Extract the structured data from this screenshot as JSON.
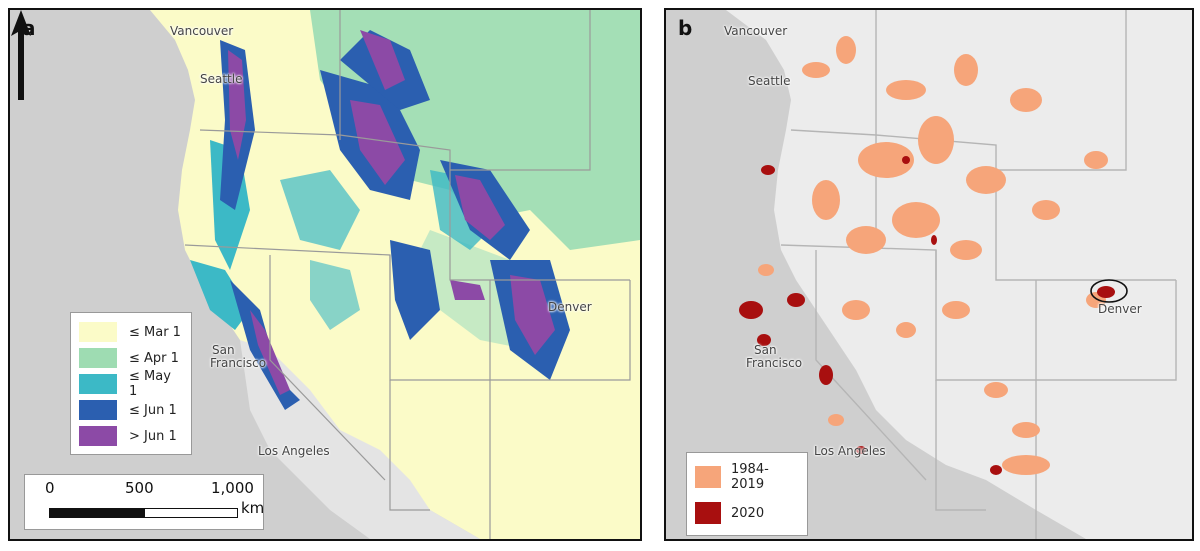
{
  "panel_a": {
    "letter": "a",
    "cities": {
      "vancouver": "Vancouver",
      "seattle": "Seattle",
      "denver": "Denver",
      "san_francisco_line1": "San",
      "san_francisco_line2": "Francisco",
      "los_angeles": "Los Angeles"
    },
    "legend": [
      {
        "label": "≤ Mar 1",
        "color": "#fbfbc8"
      },
      {
        "label": "≤ Apr 1",
        "color": "#9edcb2"
      },
      {
        "label": "≤ May 1",
        "color": "#3cb9c6"
      },
      {
        "label": "≤ Jun 1",
        "color": "#2b5fb0"
      },
      {
        "label": "> Jun 1",
        "color": "#8c4aa6"
      }
    ],
    "scalebar": {
      "ticks": [
        "0",
        "500",
        "1,000"
      ],
      "unit": "km"
    }
  },
  "panel_b": {
    "letter": "b",
    "cities": {
      "vancouver": "Vancouver",
      "seattle": "Seattle",
      "denver": "Denver",
      "san_francisco_line1": "San",
      "san_francisco_line2": "Francisco",
      "los_angeles": "Los Angeles"
    },
    "legend": [
      {
        "label": "1984-2019",
        "color": "#f6a57a"
      },
      {
        "label": "2020",
        "color": "#a80f0f"
      }
    ]
  },
  "colors": {
    "ocean": "#c8c8c8",
    "land_gray": "#ececec",
    "state_border": "#b5b5b5"
  }
}
